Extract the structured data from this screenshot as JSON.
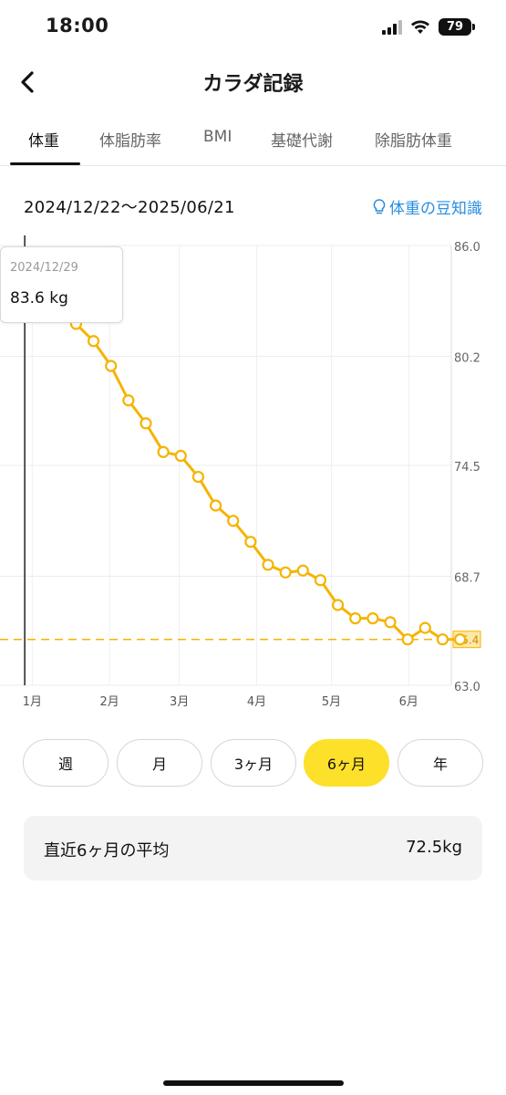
{
  "status_bar": {
    "time": "18:00",
    "battery": "79"
  },
  "header": {
    "title": "カラダ記録"
  },
  "tabs": [
    {
      "label": "体重",
      "active": true
    },
    {
      "label": "体脂肪率",
      "active": false
    },
    {
      "label": "BMI",
      "active": false
    },
    {
      "label": "基礎代謝",
      "active": false
    },
    {
      "label": "除脂肪体重",
      "active": false
    }
  ],
  "date_range": "2024/12/22〜2025/06/21",
  "tips_link": "体重の豆知識",
  "tooltip": {
    "date": "2024/12/29",
    "value": "83.6 kg"
  },
  "chart_data": {
    "type": "line",
    "x_months": [
      "1月",
      "2月",
      "3月",
      "4月",
      "5月",
      "6月"
    ],
    "y_ticks": [
      86.0,
      80.2,
      74.5,
      68.7,
      63.0
    ],
    "ylim": [
      63.0,
      86.0
    ],
    "xlim": [
      "2024-12-22",
      "2025-06-21"
    ],
    "current_value": 65.4,
    "current_value_label": "65.4",
    "highlighted_date": "2024-12-29",
    "line_color": "#f5b400",
    "dashed_line_color": "#f5b400",
    "series": [
      {
        "x": [
          "2024-12-29",
          "2025-01-05",
          "2025-01-12",
          "2025-01-19",
          "2025-01-26",
          "2025-02-02",
          "2025-02-09",
          "2025-02-16",
          "2025-02-23",
          "2025-03-02",
          "2025-03-09",
          "2025-03-16",
          "2025-03-23",
          "2025-03-30",
          "2025-04-06",
          "2025-04-13",
          "2025-04-20",
          "2025-04-27",
          "2025-05-04",
          "2025-05-11",
          "2025-05-18",
          "2025-05-25",
          "2025-06-01",
          "2025-06-08",
          "2025-06-15"
        ],
        "values": [
          83.6,
          82.7,
          81.9,
          81.0,
          79.7,
          77.9,
          76.7,
          75.2,
          75.0,
          73.9,
          72.4,
          71.6,
          70.5,
          69.3,
          68.9,
          69.0,
          68.5,
          67.2,
          66.5,
          66.5,
          66.3,
          65.4,
          66.0,
          65.4,
          65.4
        ]
      }
    ]
  },
  "period_buttons": [
    {
      "label": "週",
      "active": false
    },
    {
      "label": "月",
      "active": false
    },
    {
      "label": "3ヶ月",
      "active": false
    },
    {
      "label": "6ヶ月",
      "active": true
    },
    {
      "label": "年",
      "active": false
    }
  ],
  "average": {
    "label": "直近6ヶ月の平均",
    "value": "72.5kg"
  }
}
